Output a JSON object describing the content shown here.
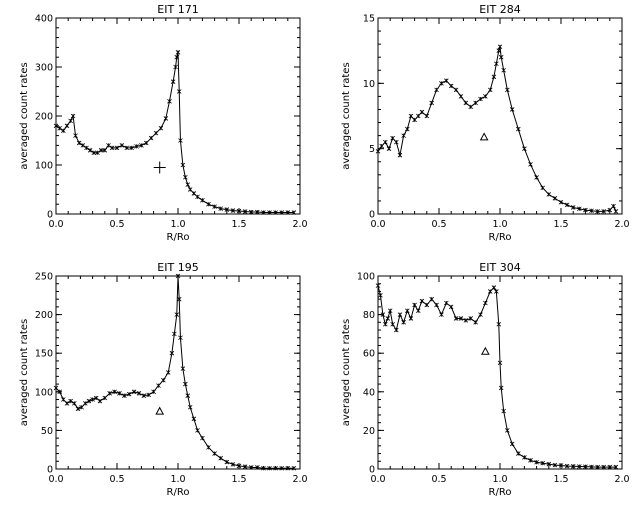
{
  "chart_data": [
    {
      "type": "line",
      "title": "EIT 171",
      "xlabel": "R/Ro",
      "ylabel": "averaged count rates",
      "xlim": [
        0,
        2
      ],
      "ylim": [
        0,
        400
      ],
      "xticks": [
        "0.0",
        "0.5",
        "1.0",
        "1.5",
        "2.0"
      ],
      "yticks": [
        "0",
        "100",
        "200",
        "300",
        "400"
      ],
      "grid": false,
      "series": [
        {
          "x": [
            0,
            0.03,
            0.06,
            0.09,
            0.12,
            0.14,
            0.16,
            0.19,
            0.22,
            0.25,
            0.28,
            0.31,
            0.34,
            0.37,
            0.4,
            0.43,
            0.46,
            0.5,
            0.54,
            0.58,
            0.62,
            0.66,
            0.7,
            0.74,
            0.78,
            0.82,
            0.86,
            0.9,
            0.93,
            0.96,
            0.98,
            0.99,
            1.0,
            1.01,
            1.02,
            1.04,
            1.06,
            1.08,
            1.1,
            1.13,
            1.16,
            1.2,
            1.25,
            1.3,
            1.35,
            1.4,
            1.45,
            1.5,
            1.55,
            1.6,
            1.65,
            1.7,
            1.75,
            1.8,
            1.85,
            1.9,
            1.95
          ],
          "y": [
            180,
            175,
            170,
            180,
            190,
            200,
            160,
            145,
            140,
            135,
            130,
            125,
            125,
            130,
            130,
            140,
            135,
            135,
            140,
            135,
            135,
            138,
            140,
            145,
            155,
            165,
            175,
            195,
            230,
            270,
            300,
            320,
            330,
            250,
            150,
            100,
            75,
            60,
            50,
            42,
            35,
            28,
            20,
            15,
            11,
            9,
            7,
            6,
            5,
            4,
            4,
            3,
            3,
            3,
            3,
            3,
            3
          ]
        }
      ],
      "marker_plus": [
        0.85,
        95
      ]
    },
    {
      "type": "line",
      "title": "EIT 284",
      "xlabel": "R/Ro",
      "ylabel": "averaged count rates",
      "xlim": [
        0,
        2
      ],
      "ylim": [
        0,
        15
      ],
      "xticks": [
        "0.0",
        "0.5",
        "1.0",
        "1.5",
        "2.0"
      ],
      "yticks": [
        "0",
        "5",
        "10",
        "15"
      ],
      "grid": false,
      "series": [
        {
          "x": [
            0,
            0.03,
            0.06,
            0.09,
            0.12,
            0.15,
            0.18,
            0.21,
            0.24,
            0.27,
            0.3,
            0.33,
            0.36,
            0.4,
            0.44,
            0.48,
            0.52,
            0.56,
            0.6,
            0.64,
            0.68,
            0.72,
            0.76,
            0.8,
            0.84,
            0.88,
            0.92,
            0.95,
            0.97,
            0.99,
            1.0,
            1.01,
            1.03,
            1.06,
            1.1,
            1.15,
            1.2,
            1.25,
            1.3,
            1.35,
            1.4,
            1.45,
            1.5,
            1.55,
            1.6,
            1.65,
            1.7,
            1.75,
            1.8,
            1.85,
            1.9,
            1.93,
            1.95
          ],
          "y": [
            4.8,
            5.2,
            5.5,
            5.0,
            5.8,
            5.5,
            4.5,
            6.0,
            6.5,
            7.5,
            7.2,
            7.5,
            7.8,
            7.5,
            8.5,
            9.5,
            10.0,
            10.2,
            9.8,
            9.5,
            9.0,
            8.5,
            8.2,
            8.5,
            8.8,
            9.0,
            9.5,
            10.5,
            11.5,
            12.5,
            12.8,
            12.0,
            11.0,
            9.5,
            8.0,
            6.5,
            5.0,
            3.8,
            2.8,
            2.0,
            1.5,
            1.2,
            0.9,
            0.7,
            0.5,
            0.4,
            0.3,
            0.25,
            0.2,
            0.2,
            0.3,
            0.6,
            0.2
          ]
        }
      ],
      "marker_triangle": [
        0.87,
        5.9
      ]
    },
    {
      "type": "line",
      "title": "EIT 195",
      "xlabel": "R/Ro",
      "ylabel": "averaged count rates",
      "xlim": [
        0,
        2
      ],
      "ylim": [
        0,
        250
      ],
      "xticks": [
        "0.0",
        "0.5",
        "1.0",
        "1.5",
        "2.0"
      ],
      "yticks": [
        "0",
        "50",
        "100",
        "150",
        "200",
        "250"
      ],
      "grid": false,
      "series": [
        {
          "x": [
            0,
            0.03,
            0.06,
            0.09,
            0.12,
            0.15,
            0.18,
            0.21,
            0.24,
            0.27,
            0.3,
            0.33,
            0.36,
            0.4,
            0.44,
            0.48,
            0.52,
            0.56,
            0.6,
            0.64,
            0.68,
            0.72,
            0.76,
            0.8,
            0.84,
            0.88,
            0.92,
            0.95,
            0.97,
            0.99,
            1.0,
            1.01,
            1.02,
            1.04,
            1.06,
            1.08,
            1.1,
            1.13,
            1.16,
            1.2,
            1.25,
            1.3,
            1.35,
            1.4,
            1.45,
            1.5,
            1.55,
            1.6,
            1.65,
            1.7,
            1.75,
            1.8,
            1.85,
            1.9,
            1.95
          ],
          "y": [
            105,
            100,
            90,
            85,
            88,
            85,
            78,
            80,
            85,
            88,
            90,
            92,
            88,
            92,
            98,
            100,
            98,
            95,
            97,
            100,
            98,
            95,
            96,
            100,
            108,
            115,
            125,
            150,
            175,
            200,
            250,
            220,
            170,
            130,
            110,
            95,
            80,
            65,
            50,
            40,
            28,
            20,
            14,
            9,
            6,
            4,
            3,
            2,
            2,
            1,
            1,
            1,
            1,
            1,
            1
          ]
        }
      ],
      "marker_triangle": [
        0.85,
        75
      ]
    },
    {
      "type": "line",
      "title": "EIT 304",
      "xlabel": "R/Ro",
      "ylabel": "averaged count rates",
      "xlim": [
        0,
        2
      ],
      "ylim": [
        0,
        100
      ],
      "xticks": [
        "0.0",
        "0.5",
        "1.0",
        "1.5",
        "2.0"
      ],
      "yticks": [
        "0",
        "20",
        "40",
        "60",
        "80",
        "100"
      ],
      "grid": false,
      "series": [
        {
          "x": [
            0,
            0.02,
            0.04,
            0.06,
            0.08,
            0.1,
            0.12,
            0.15,
            0.18,
            0.21,
            0.24,
            0.27,
            0.3,
            0.33,
            0.36,
            0.4,
            0.44,
            0.48,
            0.52,
            0.56,
            0.6,
            0.64,
            0.68,
            0.72,
            0.76,
            0.8,
            0.84,
            0.88,
            0.92,
            0.95,
            0.97,
            0.99,
            1.0,
            1.01,
            1.03,
            1.06,
            1.1,
            1.15,
            1.2,
            1.25,
            1.3,
            1.35,
            1.4,
            1.45,
            1.5,
            1.55,
            1.6,
            1.65,
            1.7,
            1.75,
            1.8,
            1.85,
            1.9,
            1.95
          ],
          "y": [
            95,
            90,
            80,
            75,
            78,
            82,
            75,
            72,
            80,
            76,
            82,
            78,
            85,
            82,
            87,
            85,
            88,
            85,
            80,
            86,
            84,
            78,
            78,
            77,
            78,
            76,
            80,
            86,
            92,
            94,
            92,
            75,
            55,
            42,
            30,
            20,
            13,
            8,
            6,
            4.5,
            3.5,
            3,
            2.5,
            2,
            1.8,
            1.5,
            1.4,
            1.3,
            1.2,
            1.1,
            1,
            1,
            1,
            1
          ]
        }
      ],
      "marker_triangle": [
        0.88,
        61
      ]
    }
  ]
}
